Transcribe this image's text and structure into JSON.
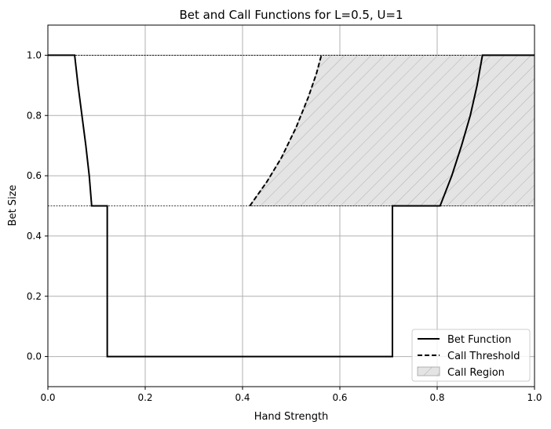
{
  "chart_data": {
    "type": "line",
    "title": "Bet and Call Functions for L=0.5, U=1",
    "xlabel": "Hand Strength",
    "ylabel": "Bet Size",
    "xlim": [
      0.0,
      1.0
    ],
    "ylim": [
      -0.1,
      1.1
    ],
    "x_ticks": [
      "0.0",
      "0.2",
      "0.4",
      "0.6",
      "0.8",
      "1.0"
    ],
    "y_ticks": [
      "0.0",
      "0.2",
      "0.4",
      "0.6",
      "0.8",
      "1.0"
    ],
    "grid": true,
    "legend_placement": "lower-right",
    "reference_lines": [
      {
        "y": 1.0,
        "style": "dotted",
        "color": "#000000"
      },
      {
        "y": 0.5,
        "style": "dotted",
        "color": "#000000"
      }
    ],
    "series": [
      {
        "name": "Bet Function",
        "style": "solid",
        "color": "#000000",
        "points": [
          [
            0.0,
            1.0
          ],
          [
            0.055,
            1.0
          ],
          [
            0.062,
            0.9
          ],
          [
            0.07,
            0.8
          ],
          [
            0.078,
            0.7
          ],
          [
            0.085,
            0.6
          ],
          [
            0.09,
            0.5
          ],
          [
            0.122,
            0.5
          ],
          [
            0.122,
            0.0
          ],
          [
            0.708,
            0.0
          ],
          [
            0.708,
            0.5
          ],
          [
            0.806,
            0.5
          ],
          [
            0.83,
            0.6
          ],
          [
            0.85,
            0.7
          ],
          [
            0.868,
            0.8
          ],
          [
            0.882,
            0.9
          ],
          [
            0.893,
            1.0
          ],
          [
            1.0,
            1.0
          ]
        ]
      },
      {
        "name": "Call Threshold",
        "style": "dashed",
        "color": "#000000",
        "points": [
          [
            0.415,
            0.5
          ],
          [
            0.45,
            0.58
          ],
          [
            0.48,
            0.66
          ],
          [
            0.51,
            0.76
          ],
          [
            0.535,
            0.86
          ],
          [
            0.552,
            0.94
          ],
          [
            0.562,
            1.0
          ]
        ]
      },
      {
        "name": "Call Region",
        "style": "hatched",
        "fill": "#e4e4e4",
        "hatch_color": "#b0b0b0",
        "edge_color": "#b0b0b0",
        "polygon": [
          [
            0.415,
            0.5
          ],
          [
            0.45,
            0.58
          ],
          [
            0.48,
            0.66
          ],
          [
            0.51,
            0.76
          ],
          [
            0.535,
            0.86
          ],
          [
            0.552,
            0.94
          ],
          [
            0.562,
            1.0
          ],
          [
            1.0,
            1.0
          ],
          [
            1.0,
            0.5
          ]
        ]
      }
    ]
  }
}
